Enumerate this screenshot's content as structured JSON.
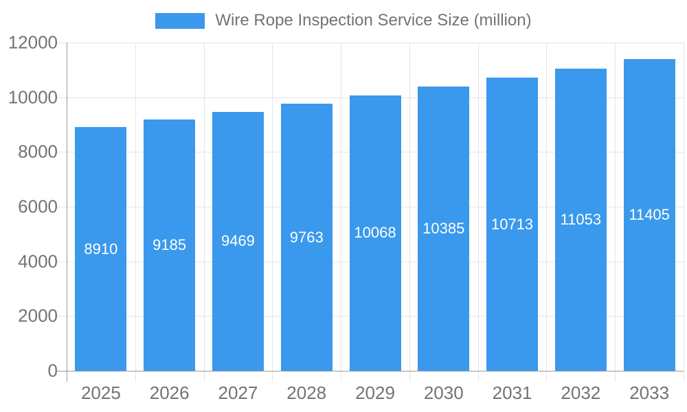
{
  "legend": {
    "label": "Wire Rope Inspection Service Size (million)"
  },
  "chart_data": {
    "type": "bar",
    "title": "",
    "legend": "Wire Rope Inspection Service Size (million)",
    "legend_position": "top",
    "categories": [
      "2025",
      "2026",
      "2027",
      "2028",
      "2029",
      "2030",
      "2031",
      "2032",
      "2033"
    ],
    "series": [
      {
        "name": "Wire Rope Inspection Service Size (million)",
        "values": [
          8910,
          9185,
          9469,
          9763,
          10068,
          10385,
          10713,
          11053,
          11405
        ]
      }
    ],
    "xlabel": "",
    "ylabel": "",
    "ylim": [
      0,
      12000
    ],
    "yticks": [
      0,
      2000,
      4000,
      6000,
      8000,
      10000,
      12000
    ],
    "grid": true,
    "value_label_position": "inside-center"
  },
  "colors": {
    "bar": "#3A99EC",
    "grid": "#E4E4E4",
    "axis": "#9B9B9B",
    "text": "#737373",
    "value_text": "#FFFFFF",
    "background": "#FFFFFF"
  }
}
